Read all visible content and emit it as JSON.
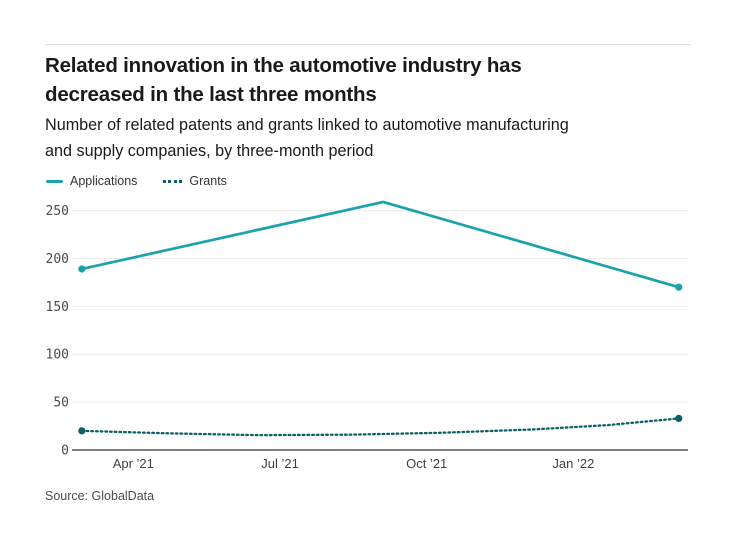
{
  "header": {
    "title": "Related innovation in the automotive industry has decreased in the last three months",
    "title_lines": [
      "Related innovation in the automotive industry has",
      "decreased in the last three months"
    ],
    "subtitle": "Number of related patents and grants linked to automotive manufacturing and supply companies, by three-month period",
    "subtitle_lines": [
      "Number of related patents and grants linked to automotive manufacturing",
      "and supply companies, by three-month period"
    ]
  },
  "legend": {
    "items": [
      {
        "label": "Applications",
        "style": "solid",
        "color": "#1aa3aa"
      },
      {
        "label": "Grants",
        "style": "dotted",
        "color": "#0d6065"
      }
    ]
  },
  "chart_data": {
    "type": "line",
    "title": "Related innovation in the automotive industry has decreased in the last three months",
    "subtitle": "Number of related patents and grants linked to automotive manufacturing and supply companies, by three-month period",
    "ylabel": "",
    "xlabel": "",
    "ylim": [
      0,
      270
    ],
    "yticks": [
      0,
      50,
      100,
      150,
      200,
      250
    ],
    "grid": "horizontal",
    "legend_position": "top-left",
    "x_ticks": [
      {
        "label": "Apr ’21",
        "pos": 0.0995
      },
      {
        "label": "Jul ’21",
        "pos": 0.3377
      },
      {
        "label": "Oct ’21",
        "pos": 0.5758
      },
      {
        "label": "Jan ’22",
        "pos": 0.8139
      }
    ],
    "series": [
      {
        "name": "Applications",
        "line_style": "solid",
        "color": "#1aa3aa",
        "markers": "endpoints",
        "points": [
          {
            "pos": 0.016,
            "value": 189
          },
          {
            "pos": 0.505,
            "value": 259
          },
          {
            "pos": 0.985,
            "value": 170
          }
        ]
      },
      {
        "name": "Grants",
        "line_style": "dotted",
        "color": "#0d6065",
        "markers": "endpoints",
        "points": [
          {
            "pos": 0.016,
            "value": 20
          },
          {
            "pos": 0.15,
            "value": 17.5
          },
          {
            "pos": 0.3,
            "value": 15.5
          },
          {
            "pos": 0.45,
            "value": 16
          },
          {
            "pos": 0.6,
            "value": 18
          },
          {
            "pos": 0.75,
            "value": 21.5
          },
          {
            "pos": 0.87,
            "value": 26
          },
          {
            "pos": 0.985,
            "value": 33
          }
        ]
      }
    ]
  },
  "source": {
    "text": "Source: GlobalData"
  },
  "colors": {
    "applications": "#1aa3aa",
    "grants": "#0d6065",
    "gridline": "#ececec",
    "axis_line": "#7f7f7f",
    "tick_label": "#4b4b4b",
    "title_text": "#1a1a1a",
    "divider": "#dbdbdb"
  }
}
